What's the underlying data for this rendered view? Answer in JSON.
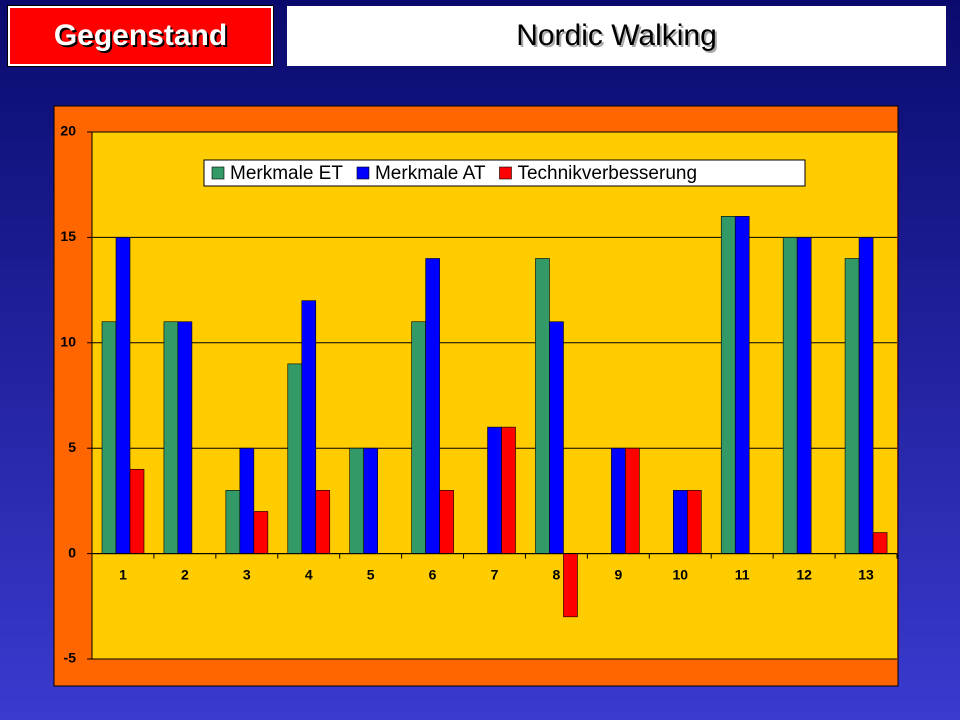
{
  "header": {
    "label": "Gegenstand",
    "title": "Nordic Walking"
  },
  "chart_data": {
    "type": "bar",
    "categories": [
      "1",
      "2",
      "3",
      "4",
      "5",
      "6",
      "7",
      "8",
      "9",
      "10",
      "11",
      "12",
      "13"
    ],
    "series": [
      {
        "name": "Merkmale ET",
        "color": "#339966",
        "values": [
          11,
          11,
          3,
          9,
          5,
          11,
          0,
          14,
          0,
          0,
          16,
          15,
          14
        ]
      },
      {
        "name": "Merkmale AT",
        "color": "#0000ff",
        "values": [
          15,
          11,
          5,
          12,
          5,
          14,
          6,
          11,
          5,
          3,
          16,
          15,
          15
        ]
      },
      {
        "name": "Technikverbesserung",
        "color": "#ff0000",
        "values": [
          4,
          0,
          2,
          3,
          0,
          3,
          6,
          -3,
          5,
          3,
          0,
          0,
          1
        ]
      }
    ],
    "ylim": [
      -5,
      20
    ],
    "yticks": [
      -5,
      0,
      5,
      10,
      15,
      20
    ],
    "grid": true,
    "legend": "top"
  }
}
